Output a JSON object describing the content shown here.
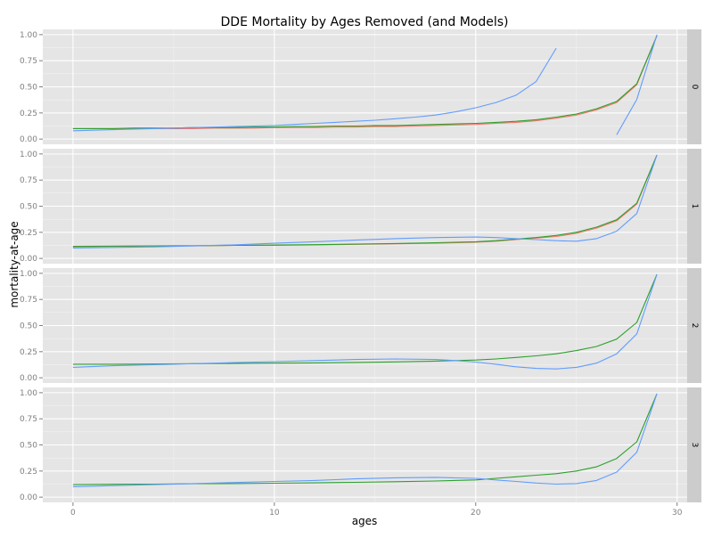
{
  "chart_data": {
    "type": "line",
    "title": "DDE Mortality by Ages Removed (and Models)",
    "xlabel": "ages",
    "ylabel": "mortality-at-age",
    "xlim": [
      -1.5,
      30.5
    ],
    "ylim": [
      -0.05,
      1.05
    ],
    "x_ticks": [
      0,
      10,
      20,
      30
    ],
    "x_tick_labels": [
      "0",
      "10",
      "20",
      "30"
    ],
    "y_ticks": [
      0,
      0.25,
      0.5,
      0.75,
      1.0
    ],
    "y_tick_labels": [
      "0.00",
      "0.25",
      "0.50",
      "0.75",
      "1.00"
    ],
    "grid": true,
    "legend": "none",
    "colors": {
      "red": "#F8766D",
      "green": "#2CA02C",
      "blue": "#619CFF",
      "panel_bg": "#E5E5E5",
      "strip_bg": "#CCCCCC"
    },
    "panels": [
      {
        "strip_label": "0",
        "series": [
          {
            "color": "red",
            "x": [
              0,
              1,
              2,
              3,
              4,
              5,
              6,
              7,
              8,
              9,
              10,
              11,
              12,
              13,
              14,
              15,
              16,
              17,
              18,
              19,
              20,
              21,
              22,
              23,
              24,
              25,
              26,
              27,
              28,
              29
            ],
            "y": [
              0.1,
              0.1,
              0.1,
              0.1,
              0.1,
              0.1,
              0.1,
              0.105,
              0.105,
              0.105,
              0.11,
              0.11,
              0.11,
              0.115,
              0.115,
              0.12,
              0.12,
              0.125,
              0.13,
              0.135,
              0.14,
              0.15,
              0.16,
              0.175,
              0.2,
              0.23,
              0.28,
              0.35,
              0.52,
              0.99
            ]
          },
          {
            "color": "green",
            "x": [
              0,
              1,
              2,
              3,
              4,
              5,
              6,
              7,
              8,
              9,
              10,
              11,
              12,
              13,
              14,
              15,
              16,
              17,
              18,
              19,
              20,
              21,
              22,
              23,
              24,
              25,
              26,
              27,
              28,
              29
            ],
            "y": [
              0.1,
              0.1,
              0.1,
              0.105,
              0.105,
              0.105,
              0.11,
              0.11,
              0.11,
              0.115,
              0.115,
              0.12,
              0.12,
              0.125,
              0.125,
              0.13,
              0.13,
              0.135,
              0.14,
              0.145,
              0.15,
              0.16,
              0.17,
              0.185,
              0.21,
              0.24,
              0.29,
              0.36,
              0.53,
              0.99
            ]
          },
          {
            "color": "blue",
            "x": [
              0,
              1,
              2,
              3,
              4,
              5,
              6,
              7,
              8,
              9,
              10,
              11,
              12,
              13,
              14,
              15,
              16,
              17,
              18,
              19,
              20,
              21,
              22,
              23,
              24
            ],
            "y": [
              0.08,
              0.085,
              0.09,
              0.095,
              0.1,
              0.105,
              0.11,
              0.115,
              0.12,
              0.125,
              0.13,
              0.14,
              0.15,
              0.16,
              0.17,
              0.18,
              0.195,
              0.21,
              0.23,
              0.26,
              0.3,
              0.35,
              0.42,
              0.55,
              0.87
            ]
          },
          {
            "color": "blue",
            "x": [
              27,
              28,
              29
            ],
            "y": [
              0.04,
              0.38,
              1.0
            ]
          }
        ]
      },
      {
        "strip_label": "1",
        "series": [
          {
            "color": "red",
            "x": [
              0,
              2,
              4,
              6,
              8,
              10,
              12,
              14,
              16,
              18,
              20,
              21,
              22,
              23,
              24,
              25,
              26,
              27,
              28,
              29
            ],
            "y": [
              0.11,
              0.115,
              0.12,
              0.12,
              0.125,
              0.125,
              0.13,
              0.135,
              0.14,
              0.145,
              0.155,
              0.165,
              0.18,
              0.195,
              0.21,
              0.24,
              0.29,
              0.36,
              0.52,
              0.99
            ]
          },
          {
            "color": "green",
            "x": [
              0,
              2,
              4,
              6,
              8,
              10,
              12,
              14,
              16,
              18,
              20,
              21,
              22,
              23,
              24,
              25,
              26,
              27,
              28,
              29
            ],
            "y": [
              0.115,
              0.118,
              0.12,
              0.122,
              0.125,
              0.128,
              0.132,
              0.137,
              0.143,
              0.15,
              0.16,
              0.17,
              0.185,
              0.2,
              0.22,
              0.25,
              0.3,
              0.37,
              0.53,
              0.99
            ]
          },
          {
            "color": "blue",
            "x": [
              0,
              2,
              4,
              6,
              8,
              10,
              12,
              14,
              16,
              18,
              20,
              21,
              22,
              23,
              24,
              25,
              26,
              27,
              28,
              29
            ],
            "y": [
              0.1,
              0.105,
              0.11,
              0.12,
              0.13,
              0.145,
              0.16,
              0.175,
              0.19,
              0.2,
              0.205,
              0.2,
              0.19,
              0.18,
              0.17,
              0.165,
              0.19,
              0.26,
              0.43,
              0.99
            ]
          }
        ]
      },
      {
        "strip_label": "2",
        "series": [
          {
            "color": "green",
            "x": [
              0,
              2,
              4,
              6,
              8,
              10,
              12,
              14,
              16,
              18,
              20,
              21,
              22,
              23,
              24,
              25,
              26,
              27,
              28,
              29
            ],
            "y": [
              0.13,
              0.13,
              0.132,
              0.135,
              0.137,
              0.14,
              0.143,
              0.147,
              0.152,
              0.16,
              0.17,
              0.18,
              0.195,
              0.21,
              0.23,
              0.26,
              0.3,
              0.37,
              0.53,
              0.99
            ]
          },
          {
            "color": "blue",
            "x": [
              0,
              2,
              4,
              6,
              8,
              10,
              12,
              14,
              16,
              18,
              19,
              20,
              21,
              22,
              23,
              24,
              25,
              26,
              27,
              28,
              29
            ],
            "y": [
              0.1,
              0.115,
              0.125,
              0.135,
              0.145,
              0.155,
              0.165,
              0.175,
              0.18,
              0.175,
              0.165,
              0.15,
              0.13,
              0.105,
              0.09,
              0.085,
              0.1,
              0.14,
              0.23,
              0.42,
              0.99
            ]
          }
        ]
      },
      {
        "strip_label": "3",
        "series": [
          {
            "color": "green",
            "x": [
              0,
              2,
              4,
              6,
              8,
              10,
              12,
              14,
              16,
              18,
              20,
              21,
              22,
              23,
              24,
              25,
              26,
              27,
              28,
              29
            ],
            "y": [
              0.12,
              0.123,
              0.125,
              0.128,
              0.13,
              0.133,
              0.137,
              0.142,
              0.148,
              0.155,
              0.165,
              0.18,
              0.195,
              0.21,
              0.225,
              0.25,
              0.29,
              0.37,
              0.53,
              0.99
            ]
          },
          {
            "color": "blue",
            "x": [
              0,
              2,
              4,
              6,
              8,
              10,
              12,
              14,
              16,
              18,
              20,
              21,
              22,
              23,
              24,
              25,
              26,
              27,
              28,
              29
            ],
            "y": [
              0.1,
              0.11,
              0.12,
              0.13,
              0.14,
              0.15,
              0.16,
              0.175,
              0.185,
              0.19,
              0.18,
              0.165,
              0.15,
              0.135,
              0.125,
              0.13,
              0.16,
              0.24,
              0.43,
              0.99
            ]
          }
        ]
      }
    ]
  }
}
